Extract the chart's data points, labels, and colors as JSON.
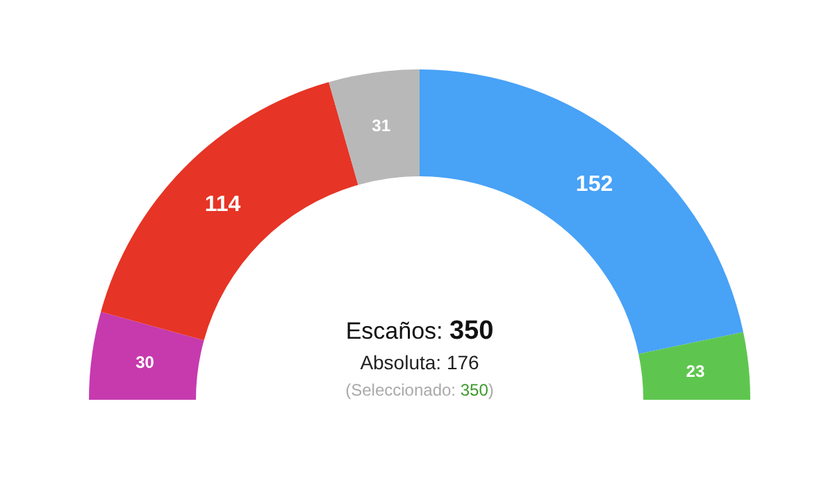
{
  "chart_data": {
    "type": "donut",
    "categories": [
      null,
      null,
      null,
      null,
      null
    ],
    "values": [
      30,
      114,
      31,
      152,
      23
    ],
    "colors": [
      "#c63aae",
      "#e63426",
      "#b8b8b8",
      "#48a2f6",
      "#5ec64f"
    ],
    "data_labels": true,
    "annotations": [
      "Escaños: 350",
      "Absoluta: 176",
      "(Seleccionado: 350)"
    ]
  }
}
